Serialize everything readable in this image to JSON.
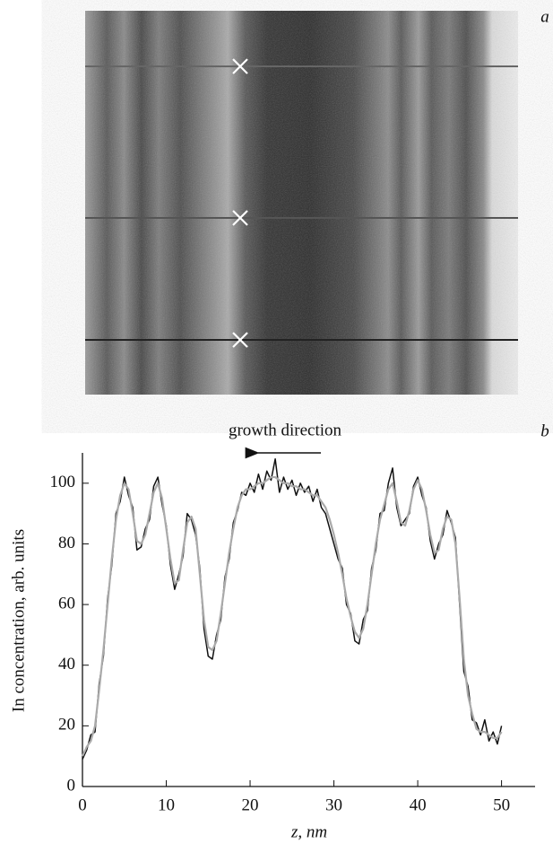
{
  "panel_a": {
    "label": "a"
  },
  "chart_data": {
    "type": "line",
    "panel_label": "b",
    "annotation": "growth direction",
    "xlabel": "z, nm",
    "ylabel": "In concentration, arb. units",
    "xlim": [
      0,
      54
    ],
    "ylim": [
      0,
      110
    ],
    "xticks": [
      0,
      10,
      20,
      30,
      40,
      50
    ],
    "yticks": [
      0,
      20,
      40,
      60,
      80,
      100
    ],
    "x": [
      0,
      0.5,
      1,
      1.5,
      2,
      2.5,
      3,
      3.5,
      4,
      4.5,
      5,
      5.5,
      6,
      6.5,
      7,
      7.5,
      8,
      8.5,
      9,
      9.5,
      10,
      10.5,
      11,
      11.5,
      12,
      12.5,
      13,
      13.5,
      14,
      14.5,
      15,
      15.5,
      16,
      16.5,
      17,
      17.5,
      18,
      18.5,
      19,
      19.5,
      20,
      20.5,
      21,
      21.5,
      22,
      22.5,
      23,
      23.5,
      24,
      24.5,
      25,
      25.5,
      26,
      26.5,
      27,
      27.5,
      28,
      28.5,
      29,
      29.5,
      30,
      30.5,
      31,
      31.5,
      32,
      32.5,
      33,
      33.5,
      34,
      34.5,
      35,
      35.5,
      36,
      36.5,
      37,
      37.5,
      38,
      38.5,
      39,
      39.5,
      40,
      40.5,
      41,
      41.5,
      42,
      42.5,
      43,
      43.5,
      44,
      44.5,
      45,
      45.5,
      46,
      46.5,
      47,
      47.5,
      48,
      48.5,
      49,
      49.5,
      50
    ],
    "series": [
      {
        "color": "#111111",
        "values": [
          9,
          12,
          17,
          18,
          34,
          43,
          62,
          73,
          90,
          94,
          102,
          96,
          92,
          78,
          79,
          85,
          88,
          99,
          102,
          93,
          86,
          73,
          65,
          70,
          76,
          90,
          88,
          83,
          72,
          52,
          43,
          42,
          50,
          55,
          69,
          75,
          87,
          91,
          97,
          96,
          100,
          97,
          103,
          98,
          104,
          101,
          108,
          97,
          102,
          98,
          101,
          96,
          100,
          97,
          99,
          94,
          98,
          92,
          90,
          85,
          80,
          75,
          72,
          60,
          57,
          48,
          47,
          55,
          58,
          72,
          78,
          90,
          91,
          100,
          105,
          92,
          86,
          88,
          90,
          99,
          102,
          96,
          92,
          81,
          75,
          80,
          83,
          91,
          87,
          82,
          60,
          38,
          33,
          22,
          21,
          17,
          22,
          15,
          18,
          14,
          20
        ]
      },
      {
        "color": "#aaaaaa",
        "values": [
          10,
          13,
          15,
          20,
          32,
          45,
          60,
          75,
          88,
          96,
          100,
          98,
          90,
          81,
          80,
          83,
          90,
          97,
          100,
          95,
          85,
          75,
          67,
          68,
          78,
          87,
          89,
          85,
          70,
          55,
          46,
          45,
          48,
          57,
          67,
          77,
          85,
          92,
          96,
          98,
          98,
          99,
          100,
          100,
          101,
          102,
          102,
          101,
          100,
          100,
          99,
          99,
          98,
          98,
          97,
          96,
          96,
          94,
          92,
          88,
          83,
          77,
          70,
          62,
          56,
          51,
          49,
          52,
          60,
          70,
          80,
          88,
          93,
          98,
          100,
          94,
          87,
          86,
          91,
          98,
          101,
          98,
          91,
          83,
          77,
          78,
          85,
          89,
          88,
          80,
          62,
          42,
          30,
          24,
          19,
          18,
          18,
          17,
          16,
          16,
          18
        ]
      }
    ]
  }
}
